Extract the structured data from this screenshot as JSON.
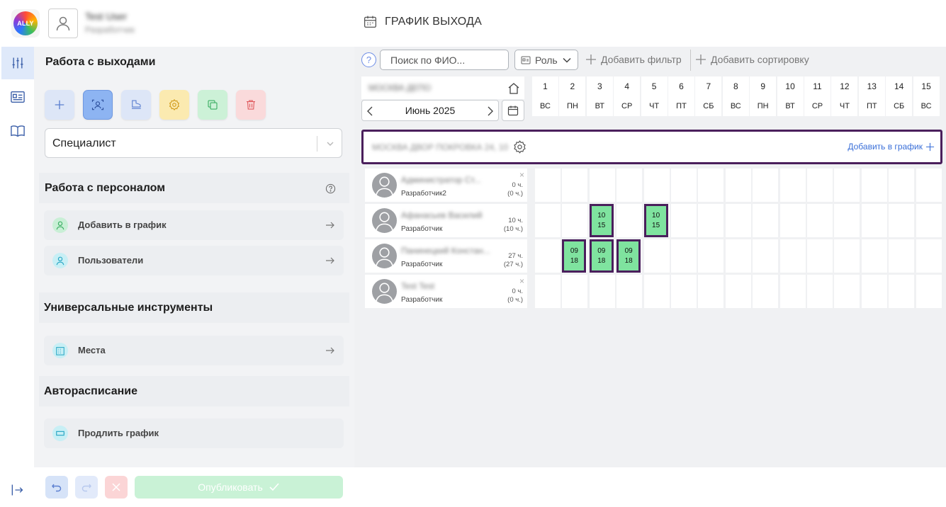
{
  "header": {
    "logo_text": "ALLY",
    "user_name": "Test User",
    "user_role": "Разработчик",
    "page_title": "ГРАФИК ВЫХОДА"
  },
  "rail": {
    "items": [
      "filters-icon",
      "id-card-icon",
      "book-icon"
    ],
    "logout_icon": "logout-icon"
  },
  "panel": {
    "section_exits": "Работа с выходами",
    "role_select_value": "Специалист",
    "section_staff": "Работа с персоналом",
    "staff_items": [
      {
        "label": "Добавить в график",
        "icon": "user-icon"
      },
      {
        "label": "Пользователи",
        "icon": "user-icon"
      }
    ],
    "section_tools": "Универсальные инструменты",
    "tools_items": [
      {
        "label": "Места",
        "icon": "building-icon"
      }
    ],
    "section_auto": "Авторасписание",
    "auto_items": [
      {
        "label": "Продлить график",
        "icon": "rectangle-icon"
      }
    ],
    "publish_label": "Опубликовать"
  },
  "toolbar": {
    "help": "?",
    "search_placeholder": "Поиск по ФИО...",
    "role_label": "Роль",
    "add_filter": "Добавить фильтр",
    "add_sort": "Добавить сортировку"
  },
  "calendar": {
    "department": "МОСКВА ДЕПО",
    "month": "Июнь 2025",
    "days": [
      {
        "n": "1",
        "w": "ВС"
      },
      {
        "n": "2",
        "w": "ПН"
      },
      {
        "n": "3",
        "w": "ВТ"
      },
      {
        "n": "4",
        "w": "СР"
      },
      {
        "n": "5",
        "w": "ЧТ"
      },
      {
        "n": "6",
        "w": "ПТ"
      },
      {
        "n": "7",
        "w": "СБ"
      },
      {
        "n": "8",
        "w": "ВС"
      },
      {
        "n": "9",
        "w": "ПН"
      },
      {
        "n": "10",
        "w": "ВТ"
      },
      {
        "n": "11",
        "w": "СР"
      },
      {
        "n": "12",
        "w": "ЧТ"
      },
      {
        "n": "13",
        "w": "ПТ"
      },
      {
        "n": "14",
        "w": "СБ"
      },
      {
        "n": "15",
        "w": "ВС"
      }
    ]
  },
  "group": {
    "name": "МОСКВА ДВОР ПОКРОВКА 24, 10",
    "add_label": "Добавить в график"
  },
  "employees": [
    {
      "name": "Администратор Ст...",
      "role": "Разработчик2",
      "hours": "0 ч.",
      "hours_alt": "(0 ч.)",
      "removable": true,
      "shifts": []
    },
    {
      "name": "Афанасьев Василий",
      "role": "Разработчик",
      "hours": "10 ч.",
      "hours_alt": "(10 ч.)",
      "removable": false,
      "shifts": [
        {
          "day": 3,
          "start": "10",
          "end": "15"
        },
        {
          "day": 5,
          "start": "10",
          "end": "15"
        }
      ]
    },
    {
      "name": "Панинецкий Констан...",
      "role": "Разработчик",
      "hours": "27 ч.",
      "hours_alt": "(27 ч.)",
      "removable": false,
      "shifts": [
        {
          "day": 2,
          "start": "09",
          "end": "18"
        },
        {
          "day": 3,
          "start": "09",
          "end": "18"
        },
        {
          "day": 4,
          "start": "09",
          "end": "18"
        }
      ]
    },
    {
      "name": "Test Test",
      "role": "Разработчик",
      "hours": "0 ч.",
      "hours_alt": "(0 ч.)",
      "removable": true,
      "shifts": []
    }
  ],
  "colors": {
    "accent": "#3a6fd8",
    "shift_fill": "#7fe39f",
    "shift_border": "#4a1f5c",
    "panel_bg": "#f2f3f5"
  }
}
